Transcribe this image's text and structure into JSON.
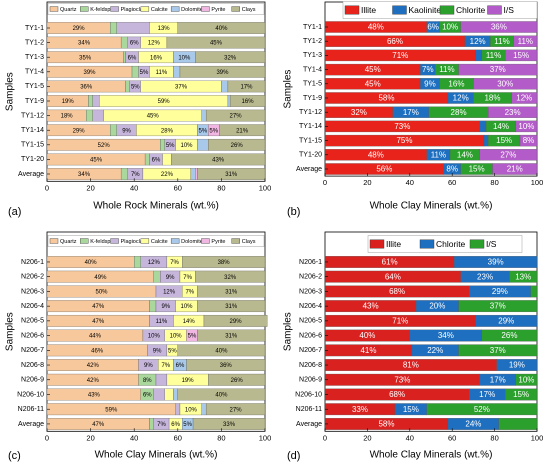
{
  "chart_data": [
    {
      "type": "bar",
      "orientation": "horizontal",
      "stacked": true,
      "panel": "(a)",
      "xlabel": "Whole Rock Minerals (wt.%)",
      "ylabel": "Samples",
      "categories": [
        "TY1-1",
        "TY1-2",
        "TY1-3",
        "TY1-4",
        "TY1-5",
        "TY1-9",
        "TY1-12",
        "TY1-14",
        "TY1-15",
        "TY1-20",
        "Average"
      ],
      "xlim": [
        0,
        100
      ],
      "xticks": [
        0,
        20,
        40,
        60,
        80,
        100
      ],
      "legend": "top",
      "label_color": "#000000",
      "series": [
        {
          "name": "Quartz",
          "color": "#f7c89b",
          "values": [
            29,
            34,
            35,
            39,
            36,
            19,
            18,
            29,
            52,
            45,
            34
          ],
          "value_labels": [
            "29%",
            "34%",
            "35%",
            "39%",
            "36%",
            "19%",
            "18%",
            "29%",
            "52%",
            "45%",
            "34%"
          ]
        },
        {
          "name": "K-feldspar",
          "color": "#a9d79c",
          "values": [
            3,
            3,
            1,
            3,
            2,
            2,
            3,
            3,
            2,
            2,
            3
          ],
          "value_labels": [
            null,
            null,
            null,
            null,
            null,
            null,
            null,
            null,
            null,
            null,
            null
          ]
        },
        {
          "name": "Plagioclase",
          "color": "#c7b6dc",
          "values": [
            15,
            6,
            6,
            5,
            5,
            3,
            5,
            9,
            5,
            6,
            7
          ],
          "value_labels": [
            null,
            "6%",
            "6%",
            "5%",
            "5%",
            null,
            null,
            "9%",
            "5%",
            "6%",
            "7%"
          ]
        },
        {
          "name": "Calcite",
          "color": "#ffff9c",
          "values": [
            13,
            12,
            16,
            11,
            37,
            59,
            45,
            28,
            10,
            4,
            22
          ],
          "value_labels": [
            "13%",
            "12%",
            "16%",
            "11%",
            "37%",
            "59%",
            "45%",
            "28%",
            "10%",
            null,
            "22%"
          ]
        },
        {
          "name": "Dolomite",
          "color": "#a9c9ea",
          "values": [
            0,
            0,
            10,
            3,
            3,
            1,
            2,
            5,
            5,
            0,
            2
          ],
          "value_labels": [
            null,
            null,
            "10%",
            null,
            null,
            null,
            null,
            "5%",
            null,
            null,
            null
          ]
        },
        {
          "name": "Pyrite",
          "color": "#f2b6e2",
          "values": [
            0,
            0,
            0,
            0,
            0,
            0,
            0,
            5,
            0,
            0,
            1
          ],
          "value_labels": [
            null,
            null,
            null,
            null,
            null,
            null,
            null,
            "5%",
            null,
            null,
            null
          ]
        },
        {
          "name": "Clays",
          "color": "#b9b98f",
          "values": [
            40,
            45,
            32,
            39,
            17,
            16,
            27,
            21,
            26,
            43,
            31
          ],
          "value_labels": [
            "40%",
            "45%",
            "32%",
            "39%",
            "17%",
            "16%",
            "27%",
            "21%",
            "26%",
            "43%",
            "31%"
          ]
        }
      ]
    },
    {
      "type": "bar",
      "orientation": "horizontal",
      "stacked": true,
      "panel": "(b)",
      "xlabel": "Whole Clay Minerals (wt.%)",
      "ylabel": "Samples",
      "categories": [
        "TY1-1",
        "TY1-2",
        "TY1-3",
        "TY1-4",
        "TY1-5",
        "TY1-9",
        "TY1-12",
        "TY1-14",
        "TY1-15",
        "TY1-20",
        "Average"
      ],
      "xlim": [
        0,
        100
      ],
      "xticks": [
        0,
        20,
        40,
        60,
        80,
        100
      ],
      "legend": "top",
      "label_color": "#ffffff",
      "series": [
        {
          "name": "Illite",
          "color": "#e8231c",
          "values": [
            48,
            66,
            71,
            45,
            45,
            58,
            32,
            73,
            75,
            48,
            56
          ],
          "value_labels": [
            "48%",
            "66%",
            "71%",
            "45%",
            "45%",
            "58%",
            "32%",
            "73%",
            "75%",
            "48%",
            "56%"
          ]
        },
        {
          "name": "Kaolinite",
          "color": "#1f6fc0",
          "values": [
            6,
            12,
            3,
            7,
            9,
            12,
            17,
            3,
            2,
            11,
            8
          ],
          "value_labels": [
            "6%",
            "12%",
            null,
            "7%",
            "9%",
            "12%",
            "17%",
            null,
            null,
            "11%",
            "8%"
          ]
        },
        {
          "name": "Chlorite",
          "color": "#2ca02c",
          "values": [
            10,
            11,
            11,
            11,
            16,
            18,
            28,
            14,
            15,
            14,
            15
          ],
          "value_labels": [
            "10%",
            "11%",
            "11%",
            "11%",
            "16%",
            "18%",
            "28%",
            "14%",
            "15%",
            "14%",
            "15%"
          ]
        },
        {
          "name": "I/S",
          "color": "#b35cc9",
          "values": [
            36,
            11,
            15,
            37,
            30,
            12,
            23,
            10,
            8,
            27,
            21
          ],
          "value_labels": [
            "36%",
            "11%",
            "15%",
            "37%",
            "30%",
            "12%",
            "23%",
            "10%",
            "8%",
            "27%",
            "21%"
          ]
        }
      ]
    },
    {
      "type": "bar",
      "orientation": "horizontal",
      "stacked": true,
      "panel": "(c)",
      "xlabel": "Whole Clay Minerals (wt.%)",
      "ylabel": "Samples",
      "categories": [
        "N206-1",
        "N206-2",
        "N206-3",
        "N206-4",
        "N206-5",
        "N206-6",
        "N206-7",
        "N206-8",
        "N206-9",
        "N206-10",
        "N206-11",
        "Average"
      ],
      "xlim": [
        0,
        100
      ],
      "xticks": [
        0,
        20,
        40,
        60,
        80,
        100
      ],
      "legend": "top",
      "label_color": "#000000",
      "series": [
        {
          "name": "Quartz",
          "color": "#f7c89b",
          "values": [
            40,
            49,
            50,
            47,
            47,
            44,
            46,
            42,
            42,
            43,
            59,
            47
          ],
          "value_labels": [
            "40%",
            "49%",
            "50%",
            "47%",
            "47%",
            "44%",
            "46%",
            "42%",
            "42%",
            "43%",
            "59%",
            "47%"
          ]
        },
        {
          "name": "K-feldspar",
          "color": "#a9d79c",
          "values": [
            3,
            3,
            0,
            3,
            0,
            0,
            0,
            0,
            8,
            6,
            0,
            2
          ],
          "value_labels": [
            null,
            null,
            null,
            null,
            null,
            null,
            null,
            null,
            "8%",
            "6%",
            null,
            null
          ]
        },
        {
          "name": "Plagioclase",
          "color": "#c7b6dc",
          "values": [
            12,
            9,
            12,
            9,
            11,
            10,
            9,
            9,
            5,
            5,
            2,
            7
          ],
          "value_labels": [
            "12%",
            "9%",
            "12%",
            "9%",
            "11%",
            "10%",
            "9%",
            "9%",
            null,
            null,
            null,
            "7%"
          ]
        },
        {
          "name": "Calcite",
          "color": "#ffff9c",
          "values": [
            7,
            7,
            7,
            10,
            14,
            10,
            5,
            7,
            19,
            4,
            10,
            6
          ],
          "value_labels": [
            "7%",
            "7%",
            "7%",
            "10%",
            "14%",
            "10%",
            "5%",
            "7%",
            "19%",
            null,
            "10%",
            "6%"
          ]
        },
        {
          "name": "Dolomite",
          "color": "#a9c9ea",
          "values": [
            0,
            0,
            0,
            0,
            0,
            0,
            0,
            6,
            0,
            2,
            2,
            5
          ],
          "value_labels": [
            null,
            null,
            null,
            null,
            null,
            null,
            null,
            "6%",
            null,
            null,
            null,
            "5%"
          ]
        },
        {
          "name": "Pyrite",
          "color": "#f2b6e2",
          "values": [
            0,
            0,
            0,
            0,
            0,
            5,
            0,
            0,
            0,
            0,
            0,
            0
          ],
          "value_labels": [
            null,
            null,
            null,
            null,
            null,
            "5%",
            null,
            null,
            null,
            null,
            null,
            null
          ]
        },
        {
          "name": "Clays",
          "color": "#b9b98f",
          "values": [
            38,
            32,
            31,
            31,
            29,
            31,
            40,
            36,
            26,
            40,
            27,
            33
          ],
          "value_labels": [
            "38%",
            "32%",
            "31%",
            "31%",
            "29%",
            "31%",
            "40%",
            "36%",
            "26%",
            "40%",
            "27%",
            "33%"
          ]
        }
      ]
    },
    {
      "type": "bar",
      "orientation": "horizontal",
      "stacked": true,
      "panel": "(d)",
      "xlabel": "Whole Clay Minerals (wt.%)",
      "ylabel": "Samples",
      "categories": [
        "N206-1",
        "N206-2",
        "N206-3",
        "N206-4",
        "N206-5",
        "N206-6",
        "N206-7",
        "N206-8",
        "N206-9",
        "N206-10",
        "N206-11",
        "Average"
      ],
      "xlim": [
        0,
        100
      ],
      "xticks": [
        0,
        20,
        40,
        60,
        80,
        100
      ],
      "legend": "top",
      "label_color": "#ffffff",
      "series": [
        {
          "name": "Illite",
          "color": "#d92120",
          "values": [
            61,
            64,
            68,
            43,
            71,
            40,
            41,
            81,
            73,
            68,
            33,
            58
          ],
          "value_labels": [
            "61%",
            "64%",
            "68%",
            "43%",
            "71%",
            "40%",
            "41%",
            "81%",
            "73%",
            "68%",
            "33%",
            "58%"
          ]
        },
        {
          "name": "Chlorite",
          "color": "#1f6fc0",
          "values": [
            39,
            23,
            29,
            20,
            29,
            34,
            22,
            19,
            17,
            17,
            15,
            24
          ],
          "value_labels": [
            "39%",
            "23%",
            "29%",
            "20%",
            "29%",
            "34%",
            "22%",
            "19%",
            "17%",
            "17%",
            "15%",
            "24%"
          ]
        },
        {
          "name": "I/S",
          "color": "#2ca02c",
          "values": [
            0,
            13,
            3,
            37,
            0,
            26,
            37,
            0,
            10,
            15,
            52,
            18
          ],
          "value_labels": [
            null,
            "13%",
            null,
            "37%",
            null,
            "26%",
            "37%",
            null,
            "10%",
            "15%",
            "52%",
            null
          ]
        }
      ]
    }
  ]
}
